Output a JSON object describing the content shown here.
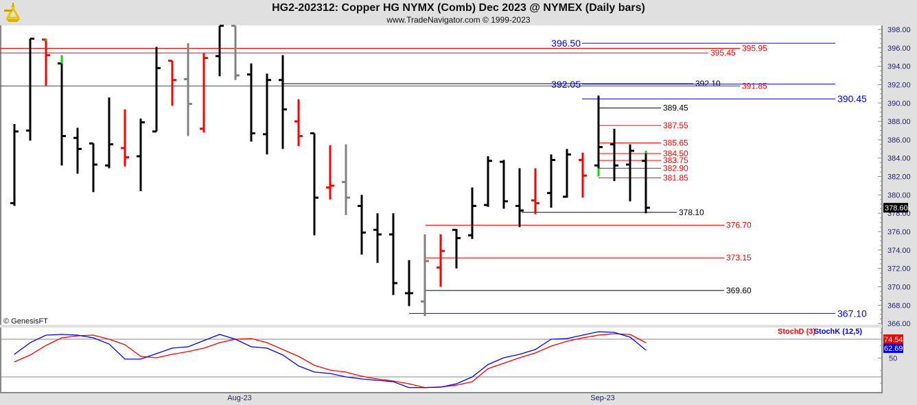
{
  "header": {
    "title": "HG2-202312:  Copper HG NYMX (Comb) Dec 2023 @ NYMEX  (Daily bars)",
    "subtitle": "www.TradeNavigator.com © 1999-2023",
    "logo": "sextant-logo"
  },
  "watermark": "© GenesisFT",
  "colors": {
    "up": "#000000",
    "down": "#ff0000",
    "neutral": "#808080",
    "highlight": "#00e000",
    "blue": "#0000ff",
    "red": "#ff0000",
    "black": "#000000"
  },
  "chart_data": [
    {
      "type": "ohlc",
      "title": "HG2-202312:  Copper HG NYMX (Comb) Dec 2023 @ NYMEX  (Daily bars)",
      "ylim": [
        366,
        398.4
      ],
      "y_ticks": [
        "366.00",
        "368.00",
        "370.00",
        "372.00",
        "374.00",
        "376.00",
        "378.00",
        "380.00",
        "382.00",
        "384.00",
        "386.00",
        "388.00",
        "390.00",
        "392.00",
        "394.00",
        "396.00",
        "398.00"
      ],
      "x_tick_labels": [
        {
          "label": "Aug-23",
          "bar": 14
        },
        {
          "label": "Sep-23",
          "bar": 37
        }
      ],
      "last_price": "378.60",
      "bars": [
        {
          "o": 379.1,
          "h": 387.7,
          "l": 378.8,
          "c": 386.9,
          "color": "black"
        },
        {
          "o": 387.0,
          "h": 397.0,
          "l": 385.9,
          "c": 397.0,
          "color": "black"
        },
        {
          "o": 396.9,
          "h": 397.0,
          "l": 391.9,
          "c": 395.2,
          "color": "red",
          "hl": [
            396.8,
            397.0
          ]
        },
        {
          "o": 394.3,
          "h": 395.2,
          "l": 383.2,
          "c": 386.4,
          "color": "black",
          "hl": [
            394.3,
            395.2
          ]
        },
        {
          "o": 386.2,
          "h": 387.3,
          "l": 382.3,
          "c": 385.0,
          "color": "black"
        },
        {
          "o": 385.6,
          "h": 385.6,
          "l": 380.3,
          "c": 383.3,
          "color": "black"
        },
        {
          "o": 383.2,
          "h": 390.6,
          "l": 382.9,
          "c": 385.5,
          "color": "black"
        },
        {
          "o": 385.1,
          "h": 389.3,
          "l": 383.1,
          "c": 384.1,
          "color": "red"
        },
        {
          "o": 384.2,
          "h": 388.3,
          "l": 380.4,
          "c": 387.9,
          "color": "black"
        },
        {
          "o": 386.9,
          "h": 396.1,
          "l": 386.9,
          "c": 393.8,
          "color": "black"
        },
        {
          "o": 394.6,
          "h": 394.6,
          "l": 389.7,
          "c": 392.5,
          "color": "red"
        },
        {
          "o": 392.6,
          "h": 396.5,
          "l": 386.4,
          "c": 389.9,
          "color": "gray"
        },
        {
          "o": 387.2,
          "h": 395.4,
          "l": 386.8,
          "c": 394.9,
          "color": "red"
        },
        {
          "o": 395.1,
          "h": 398.4,
          "l": 392.9,
          "c": 398.4,
          "color": "black"
        },
        {
          "o": 398.4,
          "h": 398.4,
          "l": 392.5,
          "c": 393.0,
          "color": "gray"
        },
        {
          "o": 393.1,
          "h": 394.3,
          "l": 385.8,
          "c": 386.7,
          "color": "black"
        },
        {
          "o": 386.6,
          "h": 393.2,
          "l": 384.4,
          "c": 392.5,
          "color": "black"
        },
        {
          "o": 392.5,
          "h": 395.2,
          "l": 385.0,
          "c": 389.3,
          "color": "black"
        },
        {
          "o": 388.0,
          "h": 390.4,
          "l": 385.3,
          "c": 386.4,
          "color": "red"
        },
        {
          "o": 386.7,
          "h": 386.7,
          "l": 375.6,
          "c": 379.7,
          "color": "black"
        },
        {
          "o": 380.8,
          "h": 385.4,
          "l": 379.5,
          "c": 381.0,
          "color": "red"
        },
        {
          "o": 381.4,
          "h": 385.5,
          "l": 377.8,
          "c": 379.7,
          "color": "gray"
        },
        {
          "o": 378.8,
          "h": 380.0,
          "l": 373.5,
          "c": 375.9,
          "color": "black"
        },
        {
          "o": 376.2,
          "h": 378.0,
          "l": 372.6,
          "c": 375.7,
          "color": "black"
        },
        {
          "o": 375.7,
          "h": 378.0,
          "l": 369.1,
          "c": 370.4,
          "color": "black"
        },
        {
          "o": 369.3,
          "h": 372.9,
          "l": 367.9,
          "c": 369.3,
          "color": "black"
        },
        {
          "o": 368.4,
          "h": 375.7,
          "l": 366.8,
          "c": 372.8,
          "color": "gray"
        },
        {
          "o": 372.1,
          "h": 375.7,
          "l": 370.0,
          "c": 373.9,
          "color": "red"
        },
        {
          "o": 376.2,
          "h": 376.3,
          "l": 372.0,
          "c": 375.3,
          "color": "black"
        },
        {
          "o": 375.6,
          "h": 380.8,
          "l": 375.2,
          "c": 378.8,
          "color": "black"
        },
        {
          "o": 378.9,
          "h": 384.2,
          "l": 378.7,
          "c": 383.7,
          "color": "black"
        },
        {
          "o": 383.6,
          "h": 383.8,
          "l": 378.5,
          "c": 379.3,
          "color": "black"
        },
        {
          "o": 378.8,
          "h": 382.9,
          "l": 376.5,
          "c": 378.3,
          "color": "black"
        },
        {
          "o": 379.4,
          "h": 382.9,
          "l": 377.9,
          "c": 379.1,
          "color": "red"
        },
        {
          "o": 380.2,
          "h": 384.4,
          "l": 378.6,
          "c": 383.8,
          "color": "black"
        },
        {
          "o": 379.8,
          "h": 385.0,
          "l": 379.7,
          "c": 384.4,
          "color": "black"
        },
        {
          "o": 383.8,
          "h": 384.6,
          "l": 379.7,
          "c": 382.1,
          "color": "red"
        },
        {
          "o": 383.2,
          "h": 390.8,
          "l": 382.0,
          "c": 385.2,
          "color": "black",
          "hl": [
            382.0,
            382.9
          ]
        },
        {
          "o": 385.5,
          "h": 387.2,
          "l": 381.5,
          "c": 383.2,
          "color": "black"
        },
        {
          "o": 383.3,
          "h": 385.5,
          "l": 379.3,
          "c": 384.8,
          "color": "black"
        },
        {
          "o": 383.7,
          "h": 384.8,
          "l": 378.0,
          "c": 378.6,
          "color": "black",
          "hl": [
            384.5,
            384.8
          ]
        }
      ],
      "levels": [
        {
          "value": 396.5,
          "label": "396.50",
          "color": "blue"
        },
        {
          "value": 395.95,
          "label": "395.95",
          "color": "red"
        },
        {
          "value": 395.45,
          "label": "395.45",
          "color": "red"
        },
        {
          "value": 392.1,
          "label": "392.10",
          "color": "black"
        },
        {
          "value": 392.05,
          "label": "392.05",
          "color": "blue"
        },
        {
          "value": 391.85,
          "label": "391.85",
          "color": "red"
        },
        {
          "value": 390.45,
          "label": "390.45",
          "color": "blue"
        },
        {
          "value": 389.45,
          "label": "389.45",
          "color": "black"
        },
        {
          "value": 387.55,
          "label": "387.55",
          "color": "red"
        },
        {
          "value": 385.65,
          "label": "385.65",
          "color": "red"
        },
        {
          "value": 384.5,
          "label": "384.50",
          "color": "red"
        },
        {
          "value": 383.75,
          "label": "383.75",
          "color": "red"
        },
        {
          "value": 382.9,
          "label": "382.90",
          "color": "red"
        },
        {
          "value": 381.85,
          "label": "381.85",
          "color": "red"
        },
        {
          "value": 378.1,
          "label": "378.10",
          "color": "black"
        },
        {
          "value": 376.7,
          "label": "376.70",
          "color": "red"
        },
        {
          "value": 373.15,
          "label": "373.15",
          "color": "red"
        },
        {
          "value": 369.6,
          "label": "369.60",
          "color": "black"
        },
        {
          "value": 367.1,
          "label": "367.10",
          "color": "blue"
        }
      ]
    },
    {
      "type": "line",
      "ylim": [
        0,
        100
      ],
      "y_ticks": [
        "50"
      ],
      "reference_lines": [
        20,
        80
      ],
      "series": [
        {
          "name": "StochD (3)",
          "color": "red",
          "last": "74.54",
          "values": [
            44,
            54.9,
            70.2,
            82.2,
            85.5,
            86.5,
            80,
            71.3,
            52.7,
            50.5,
            56,
            60.4,
            65.8,
            74.5,
            80,
            81.1,
            74.5,
            63.6,
            52.7,
            38.5,
            30.9,
            27.6,
            21.1,
            16.7,
            13.5,
            9.1,
            3,
            4,
            6.9,
            12.4,
            33.1,
            41.8,
            50.5,
            58.2,
            69.1,
            76.7,
            82.2,
            86.5,
            88.7,
            87.6,
            74.54
          ]
        },
        {
          "name": "StochK (12,5)",
          "color": "blue",
          "last": "62.69",
          "values": [
            56,
            74.5,
            86.5,
            87.6,
            86.5,
            82.2,
            72.4,
            48.4,
            48.4,
            57.1,
            65.8,
            68,
            77.8,
            87.6,
            80,
            68,
            65.8,
            54.9,
            37.5,
            27.7,
            25.5,
            20,
            16.7,
            14.5,
            12.4,
            3,
            3,
            3.6,
            9.1,
            20,
            39.6,
            50.5,
            56,
            63.6,
            80,
            81.1,
            86.5,
            92,
            90.9,
            83.3,
            62.69
          ]
        }
      ]
    }
  ]
}
